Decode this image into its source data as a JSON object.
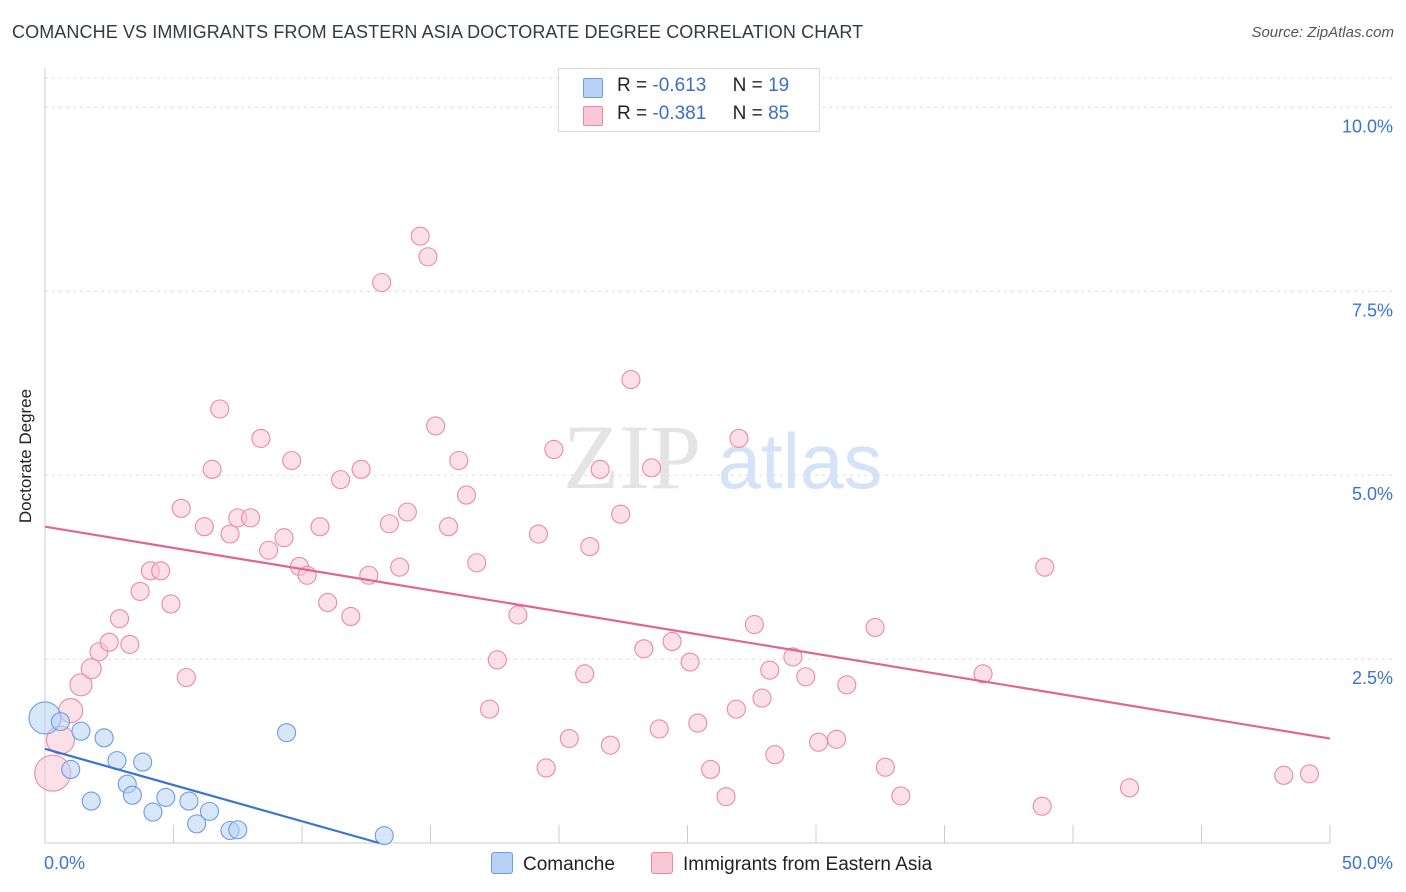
{
  "header": {
    "title": "COMANCHE VS IMMIGRANTS FROM EASTERN ASIA DOCTORATE DEGREE CORRELATION CHART",
    "source": "Source: ZipAtlas.com"
  },
  "watermark": {
    "zip": "ZIP",
    "atlas": "atlas"
  },
  "legend": {
    "rows": [
      {
        "r_label": "R =",
        "r_value": "-0.613",
        "n_label": "N =",
        "n_value": "19",
        "fill": "#b8d1f5",
        "stroke": "#6d9be0"
      },
      {
        "r_label": "R =",
        "r_value": "-0.381",
        "n_label": "N =",
        "n_value": "85",
        "fill": "#f9c7d6",
        "stroke": "#e88aa8"
      }
    ]
  },
  "bottom_legend": [
    {
      "label": "Comanche",
      "fill": "#b8d1f5",
      "stroke": "#6d9be0"
    },
    {
      "label": "Immigrants from Eastern Asia",
      "fill": "#f9c7d6",
      "stroke": "#e88aa8"
    }
  ],
  "chart_data": {
    "type": "scatter",
    "title": "COMANCHE VS IMMIGRANTS FROM EASTERN ASIA DOCTORATE DEGREE CORRELATION CHART",
    "xlabel": "",
    "ylabel": "Doctorate Degree",
    "xlim": [
      0,
      50
    ],
    "ylim": [
      0,
      10.4
    ],
    "x_tick_labels": [
      "0.0%",
      "50.0%"
    ],
    "y_ticks": [
      {
        "value": 2.5,
        "label": "2.5%"
      },
      {
        "value": 5.0,
        "label": "5.0%"
      },
      {
        "value": 7.5,
        "label": "7.5%"
      },
      {
        "value": 10.0,
        "label": "10.0%"
      }
    ],
    "grid": true,
    "series": [
      {
        "name": "Comanche",
        "color": "#6d9be0",
        "fill": "#b8d1f5",
        "trend_color": "#3b74d0",
        "trend": {
          "x0": 0,
          "y0": 1.28,
          "x1": 13.0,
          "y1": 0.0
        },
        "points": [
          [
            0.0,
            1.7,
            16
          ],
          [
            0.6,
            1.65,
            9
          ],
          [
            1.0,
            1.0,
            9
          ],
          [
            1.4,
            1.52,
            9
          ],
          [
            1.8,
            0.57,
            9
          ],
          [
            2.3,
            1.43,
            9
          ],
          [
            2.8,
            1.12,
            9
          ],
          [
            3.2,
            0.8,
            9
          ],
          [
            3.4,
            0.65,
            9
          ],
          [
            3.8,
            1.1,
            9
          ],
          [
            4.2,
            0.42,
            9
          ],
          [
            4.7,
            0.62,
            9
          ],
          [
            5.6,
            0.57,
            9
          ],
          [
            5.9,
            0.26,
            9
          ],
          [
            6.4,
            0.43,
            9
          ],
          [
            7.2,
            0.17,
            9
          ],
          [
            7.5,
            0.18,
            9
          ],
          [
            9.4,
            1.5,
            9
          ],
          [
            13.2,
            0.1,
            9
          ]
        ]
      },
      {
        "name": "Immigrants from Eastern Asia",
        "color": "#e88aa8",
        "fill": "#f9c7d6",
        "trend_color": "#e06690",
        "trend": {
          "x0": 0,
          "y0": 4.3,
          "x1": 50,
          "y1": 1.42
        },
        "points": [
          [
            0.3,
            0.95,
            18
          ],
          [
            0.6,
            1.4,
            14
          ],
          [
            1.0,
            1.8,
            12
          ],
          [
            1.4,
            2.15,
            11
          ],
          [
            1.8,
            2.37,
            10
          ],
          [
            2.1,
            2.6,
            9
          ],
          [
            2.5,
            2.73,
            9
          ],
          [
            2.9,
            3.05,
            9
          ],
          [
            3.3,
            2.7,
            9
          ],
          [
            3.7,
            3.42,
            9
          ],
          [
            4.1,
            3.7,
            9
          ],
          [
            4.5,
            3.7,
            9
          ],
          [
            4.9,
            3.25,
            9
          ],
          [
            5.3,
            4.55,
            9
          ],
          [
            5.5,
            2.25,
            9
          ],
          [
            6.2,
            4.3,
            9
          ],
          [
            6.5,
            5.08,
            9
          ],
          [
            6.8,
            5.9,
            9
          ],
          [
            7.2,
            4.2,
            9
          ],
          [
            7.5,
            4.42,
            9
          ],
          [
            8.0,
            4.42,
            9
          ],
          [
            8.4,
            5.5,
            9
          ],
          [
            8.7,
            3.98,
            9
          ],
          [
            9.3,
            4.15,
            9
          ],
          [
            9.6,
            5.2,
            9
          ],
          [
            9.9,
            3.76,
            9
          ],
          [
            10.2,
            3.64,
            9
          ],
          [
            10.7,
            4.3,
            9
          ],
          [
            11.0,
            3.27,
            9
          ],
          [
            11.5,
            4.94,
            9
          ],
          [
            11.9,
            3.08,
            9
          ],
          [
            12.3,
            5.08,
            9
          ],
          [
            12.6,
            3.64,
            9
          ],
          [
            13.1,
            7.62,
            9
          ],
          [
            13.4,
            4.34,
            9
          ],
          [
            13.8,
            3.75,
            9
          ],
          [
            14.1,
            4.5,
            9
          ],
          [
            14.6,
            8.25,
            9
          ],
          [
            14.9,
            7.97,
            9
          ],
          [
            15.2,
            5.67,
            9
          ],
          [
            15.7,
            4.3,
            9
          ],
          [
            16.1,
            5.2,
            9
          ],
          [
            16.4,
            4.73,
            9
          ],
          [
            16.8,
            3.81,
            9
          ],
          [
            17.3,
            1.82,
            9
          ],
          [
            17.6,
            2.49,
            9
          ],
          [
            18.4,
            3.1,
            9
          ],
          [
            19.2,
            4.2,
            9
          ],
          [
            19.5,
            1.02,
            9
          ],
          [
            19.8,
            5.35,
            9
          ],
          [
            20.4,
            1.42,
            9
          ],
          [
            21.0,
            2.3,
            9
          ],
          [
            21.2,
            4.03,
            9
          ],
          [
            21.6,
            5.08,
            9
          ],
          [
            22.0,
            1.33,
            9
          ],
          [
            22.4,
            4.47,
            9
          ],
          [
            22.8,
            6.3,
            9
          ],
          [
            23.3,
            2.64,
            9
          ],
          [
            23.6,
            5.1,
            9
          ],
          [
            23.9,
            1.55,
            9
          ],
          [
            24.4,
            2.74,
            9
          ],
          [
            25.1,
            2.46,
            9
          ],
          [
            25.4,
            1.63,
            9
          ],
          [
            25.9,
            1.0,
            9
          ],
          [
            26.5,
            0.63,
            9
          ],
          [
            26.9,
            1.82,
            9
          ],
          [
            27.0,
            5.5,
            9
          ],
          [
            27.6,
            2.97,
            9
          ],
          [
            27.9,
            1.97,
            9
          ],
          [
            28.2,
            2.35,
            9
          ],
          [
            28.4,
            1.2,
            9
          ],
          [
            29.1,
            2.53,
            9
          ],
          [
            29.6,
            2.26,
            9
          ],
          [
            30.1,
            1.37,
            9
          ],
          [
            30.8,
            1.41,
            9
          ],
          [
            31.2,
            2.15,
            9
          ],
          [
            32.3,
            2.93,
            9
          ],
          [
            32.7,
            1.03,
            9
          ],
          [
            33.3,
            0.64,
            9
          ],
          [
            36.5,
            2.3,
            9
          ],
          [
            38.8,
            0.5,
            9
          ],
          [
            38.9,
            3.75,
            9
          ],
          [
            42.2,
            0.75,
            9
          ],
          [
            48.2,
            0.92,
            9
          ],
          [
            49.2,
            0.94,
            9
          ]
        ]
      }
    ]
  }
}
